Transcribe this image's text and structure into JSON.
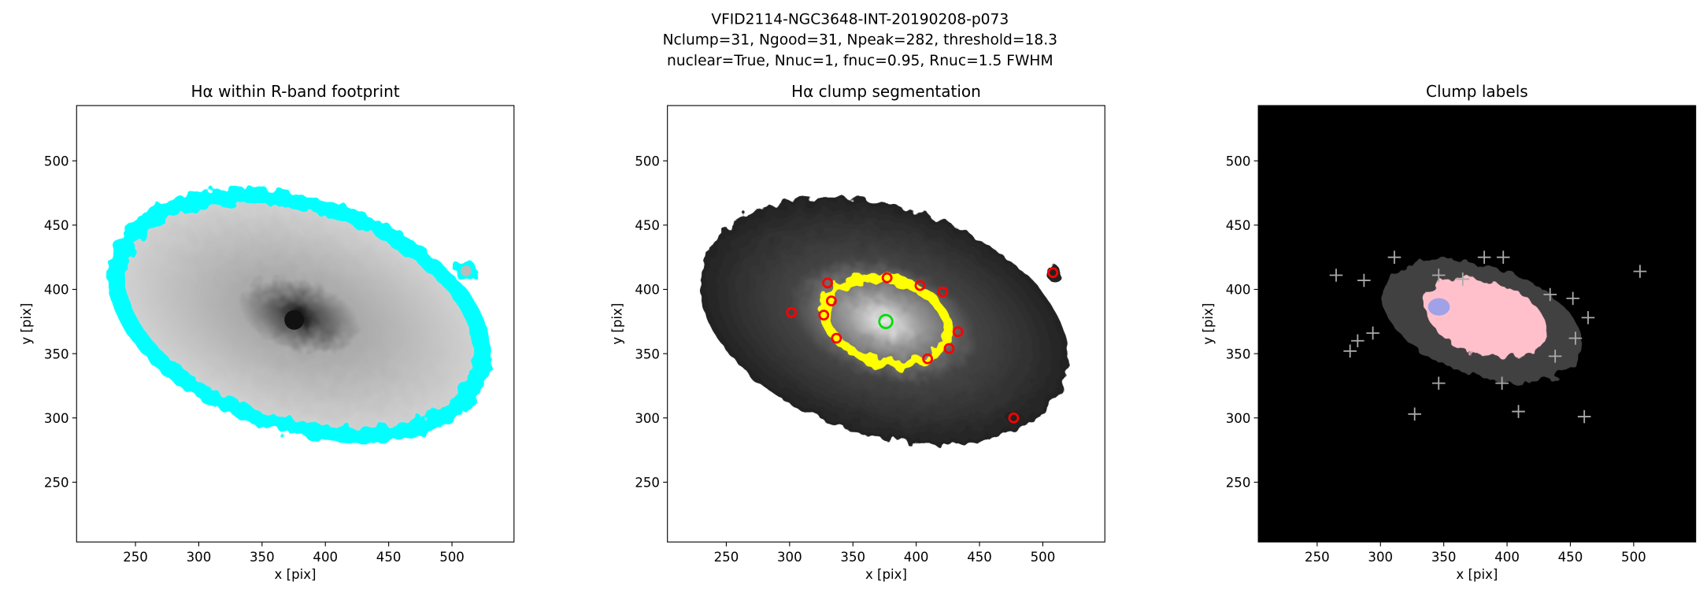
{
  "suptitle": [
    "VFID2114-NGC3648-INT-20190208-p073",
    "Nclump=31, Ngood=31, Npeak=282, threshold=18.3",
    "nuclear=True, Nnuc=1, fnuc=0.95, Rnuc=1.5 FWHM"
  ],
  "chart_data": [
    {
      "type": "image",
      "title": "Hα within R-band footprint",
      "xlabel": "x [pix]",
      "ylabel": "y [pix]",
      "xlim": [
        203.5,
        549
      ],
      "ylim": [
        203.5,
        543
      ],
      "xticks": [
        250,
        300,
        350,
        400,
        450,
        500
      ],
      "yticks": [
        250,
        300,
        350,
        400,
        450,
        500
      ]
    },
    {
      "type": "image",
      "title": "Hα clump segmentation",
      "xlabel": "x [pix]",
      "ylabel": "y [pix]",
      "xlim": [
        203.5,
        549
      ],
      "ylim": [
        203.5,
        543
      ],
      "xticks": [
        250,
        300,
        350,
        400,
        450,
        500
      ],
      "yticks": [
        250,
        300,
        350,
        400,
        450,
        500
      ],
      "markers": {
        "x": [
          301.5,
          508,
          477,
          377,
          330,
          333,
          327,
          337,
          409,
          426,
          433,
          403,
          421
        ],
        "y": [
          382,
          413,
          300,
          409,
          405,
          391,
          380,
          362,
          346,
          354,
          367,
          403,
          398
        ],
        "color": "#ff0000"
      },
      "nucleus": {
        "x": [
          376
        ],
        "y": [
          375
        ],
        "color": "#00dd00"
      }
    },
    {
      "type": "image",
      "title": "Clump labels",
      "xlabel": "x [pix]",
      "ylabel": "y [pix]",
      "xlim": [
        203.5,
        549
      ],
      "ylim": [
        203.5,
        543
      ],
      "xticks": [
        250,
        300,
        350,
        400,
        450,
        500
      ],
      "yticks": [
        250,
        300,
        350,
        400,
        450,
        500
      ],
      "markers": {
        "x": [
          265,
          287,
          311,
          382,
          397,
          505,
          276,
          282,
          294,
          327,
          409,
          434,
          452,
          464,
          438,
          396,
          346,
          461,
          454,
          346,
          365
        ],
        "y": [
          411,
          407,
          425,
          425,
          425,
          414,
          352,
          360,
          366,
          303,
          305,
          396,
          393,
          378,
          348,
          327,
          327,
          301,
          362,
          411,
          408
        ],
        "color": "#aaaaaa"
      }
    }
  ]
}
